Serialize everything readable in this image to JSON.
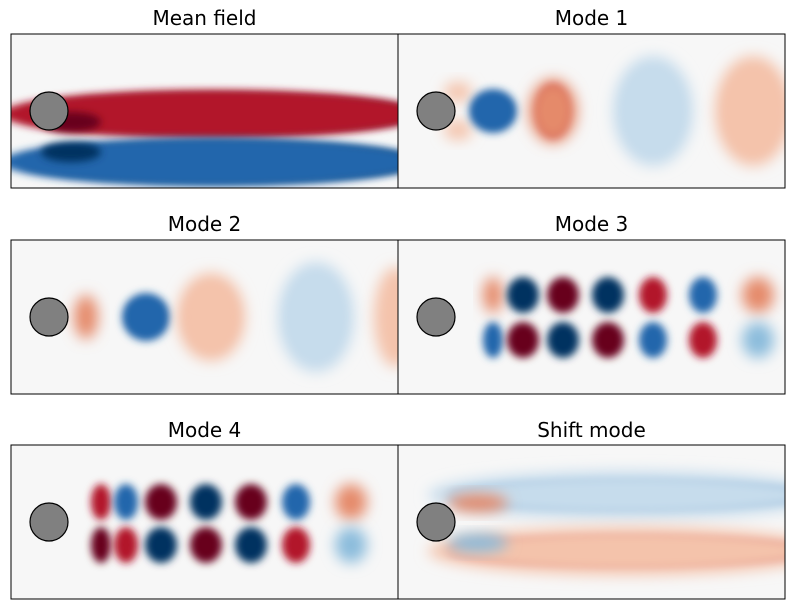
{
  "panels": [
    {
      "title": "Mean field"
    },
    {
      "title": "Mode 1"
    },
    {
      "title": "Mode 2"
    },
    {
      "title": "Mode 3"
    },
    {
      "title": "Mode 4"
    },
    {
      "title": "Shift mode"
    }
  ]
}
